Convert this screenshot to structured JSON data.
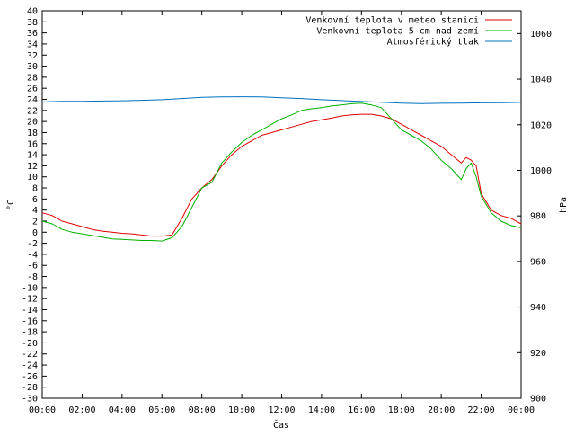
{
  "chart_data": {
    "type": "line",
    "title": "",
    "xlabel": "Čas",
    "ylabel": "°C",
    "y2label": "hPa",
    "xlim": [
      0,
      24
    ],
    "ylim": [
      -30,
      40
    ],
    "y2lim": [
      900,
      1070
    ],
    "x_ticks": [
      "00:00",
      "02:00",
      "04:00",
      "06:00",
      "08:00",
      "10:00",
      "12:00",
      "14:00",
      "16:00",
      "18:00",
      "20:00",
      "22:00",
      "00:00"
    ],
    "y_ticks": [
      40,
      38,
      36,
      34,
      32,
      30,
      28,
      26,
      24,
      22,
      20,
      18,
      16,
      14,
      12,
      10,
      8,
      6,
      4,
      2,
      0,
      -2,
      -4,
      -6,
      -8,
      -10,
      -12,
      -14,
      -16,
      -18,
      -20,
      -22,
      -24,
      -26,
      -28,
      -30
    ],
    "y2_ticks": [
      1060,
      1040,
      1020,
      1000,
      980,
      960,
      940,
      920,
      900
    ],
    "legend_position": "top-right",
    "grid": false,
    "series": [
      {
        "name": "Venkovní teplota v meteo stanici",
        "axis": "left",
        "color": "#e00000",
        "x": [
          0,
          0.5,
          1,
          1.5,
          2,
          2.5,
          3,
          3.5,
          4,
          4.5,
          5,
          5.5,
          6,
          6.5,
          7,
          7.5,
          8,
          8.5,
          9,
          9.5,
          10,
          10.5,
          11,
          11.5,
          12,
          12.5,
          13,
          13.5,
          14,
          14.5,
          15,
          15.5,
          16,
          16.5,
          17,
          17.5,
          18,
          18.5,
          19,
          19.5,
          20,
          20.5,
          21,
          21.25,
          21.5,
          21.75,
          22,
          22.5,
          23,
          23.5,
          24
        ],
        "y": [
          3.5,
          3,
          2,
          1.5,
          1,
          0.5,
          0.2,
          0,
          -0.2,
          -0.3,
          -0.5,
          -0.7,
          -0.7,
          -0.5,
          2.5,
          6,
          8,
          9.5,
          12,
          14,
          15.5,
          16.5,
          17.5,
          18,
          18.5,
          19,
          19.5,
          20,
          20.3,
          20.6,
          21,
          21.2,
          21.3,
          21.3,
          21,
          20.5,
          19.5,
          18.5,
          17.5,
          16.5,
          15.5,
          14,
          12.5,
          13.5,
          13,
          12,
          7,
          4,
          3,
          2.5,
          1.5
        ]
      },
      {
        "name": "Venkovní teplota 5 cm nad zemí",
        "axis": "left",
        "color": "#00b000",
        "x": [
          0,
          0.5,
          1,
          1.5,
          2,
          2.5,
          3,
          3.5,
          4,
          4.5,
          5,
          5.5,
          6,
          6.5,
          7,
          7.5,
          8,
          8.5,
          9,
          9.5,
          10,
          10.5,
          11,
          11.5,
          12,
          12.5,
          13,
          13.5,
          14,
          14.5,
          15,
          15.5,
          16,
          16.5,
          17,
          17.5,
          18,
          18.5,
          19,
          19.5,
          20,
          20.5,
          21,
          21.25,
          21.5,
          21.75,
          22,
          22.5,
          23,
          23.5,
          24
        ],
        "y": [
          2,
          1.5,
          0.5,
          0,
          -0.3,
          -0.6,
          -0.9,
          -1.2,
          -1.3,
          -1.4,
          -1.5,
          -1.5,
          -1.6,
          -1,
          1,
          4.5,
          8,
          9,
          12.5,
          14.5,
          16.2,
          17.5,
          18.5,
          19.5,
          20.5,
          21.2,
          22,
          22.3,
          22.5,
          22.8,
          23,
          23.2,
          23.3,
          23,
          22.5,
          20.5,
          18.5,
          17.5,
          16.5,
          15,
          13,
          11.5,
          9.5,
          11.5,
          12.5,
          10,
          6.5,
          3.5,
          2,
          1.2,
          0.8
        ]
      },
      {
        "name": "Atmosférický tlak",
        "axis": "right",
        "color": "#0070c0",
        "x": [
          0,
          1,
          2,
          3,
          4,
          5,
          6,
          7,
          8,
          9,
          10,
          11,
          12,
          13,
          14,
          15,
          16,
          17,
          18,
          19,
          20,
          21,
          22,
          23,
          24
        ],
        "y": [
          1030,
          1030.3,
          1030.3,
          1030.4,
          1030.5,
          1030.7,
          1031,
          1031.5,
          1032,
          1032.2,
          1032.3,
          1032.2,
          1031.8,
          1031.5,
          1031,
          1030.6,
          1030.2,
          1029.9,
          1029.5,
          1029.3,
          1029.4,
          1029.5,
          1029.6,
          1029.7,
          1029.8
        ]
      }
    ]
  }
}
